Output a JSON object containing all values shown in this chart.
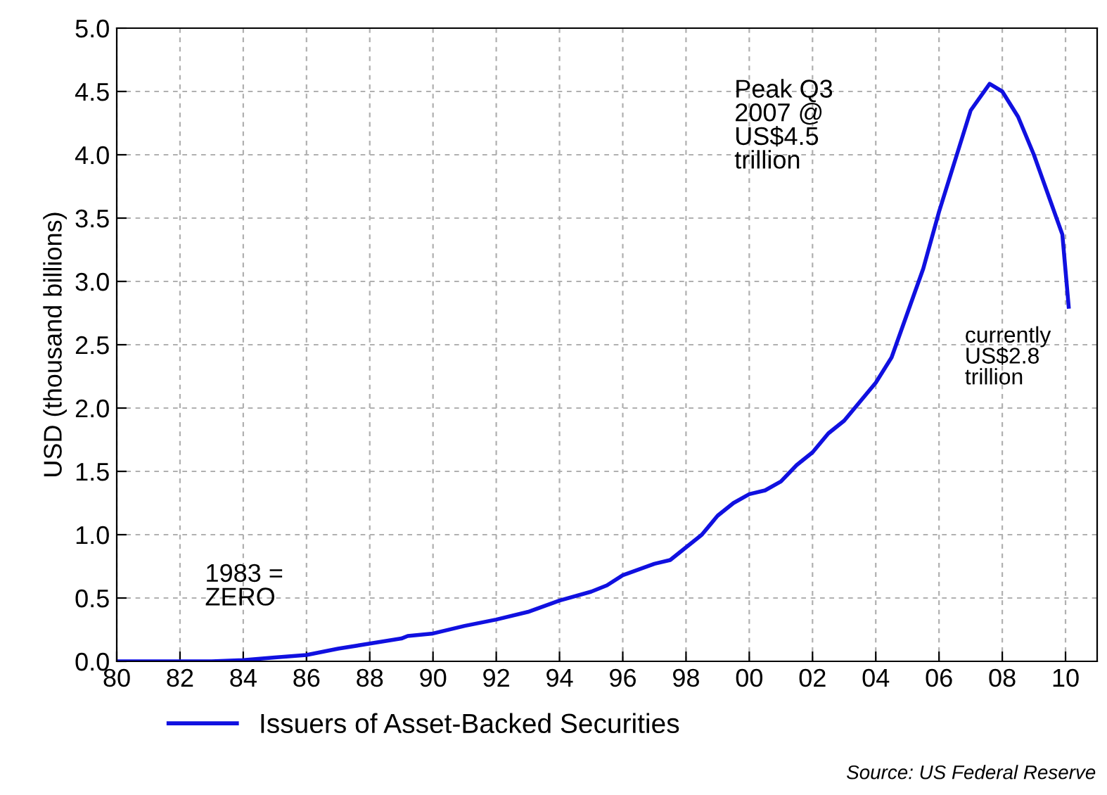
{
  "chart_data": {
    "type": "line",
    "ylabel": "USD (thousand billions)",
    "x": [
      1980,
      1983,
      1984,
      1985,
      1986,
      1987,
      1988,
      1989,
      1989.2,
      1990,
      1991,
      1992,
      1993,
      1994,
      1995,
      1995.5,
      1996,
      1997,
      1997.5,
      1998,
      1998.5,
      1999,
      1999.5,
      2000,
      2000.5,
      2001,
      2001.5,
      2002,
      2002.5,
      2003,
      2003.5,
      2004,
      2004.5,
      2005,
      2005.5,
      2006,
      2006.5,
      2007,
      2007.6,
      2008,
      2008.5,
      2009,
      2009.5,
      2009.9,
      2010.1
    ],
    "series": [
      {
        "name": "Issuers of Asset-Backed Securities",
        "color": "#1010e0",
        "values": [
          0,
          0,
          0.01,
          0.03,
          0.05,
          0.1,
          0.14,
          0.18,
          0.2,
          0.22,
          0.28,
          0.33,
          0.39,
          0.48,
          0.55,
          0.6,
          0.68,
          0.77,
          0.8,
          0.9,
          1.0,
          1.15,
          1.25,
          1.32,
          1.35,
          1.42,
          1.55,
          1.65,
          1.8,
          1.9,
          2.05,
          2.2,
          2.4,
          2.75,
          3.1,
          3.55,
          3.95,
          4.35,
          4.56,
          4.5,
          4.3,
          4.0,
          3.65,
          3.37,
          2.8
        ]
      }
    ],
    "xlim": [
      1980,
      2011
    ],
    "xticks": [
      {
        "value": 1980,
        "label": "80"
      },
      {
        "value": 1982,
        "label": "82"
      },
      {
        "value": 1984,
        "label": "84"
      },
      {
        "value": 1986,
        "label": "86"
      },
      {
        "value": 1988,
        "label": "88"
      },
      {
        "value": 1990,
        "label": "90"
      },
      {
        "value": 1992,
        "label": "92"
      },
      {
        "value": 1994,
        "label": "94"
      },
      {
        "value": 1996,
        "label": "96"
      },
      {
        "value": 1998,
        "label": "98"
      },
      {
        "value": 2000,
        "label": "00"
      },
      {
        "value": 2002,
        "label": "02"
      },
      {
        "value": 2004,
        "label": "04"
      },
      {
        "value": 2006,
        "label": "06"
      },
      {
        "value": 2008,
        "label": "08"
      },
      {
        "value": 2010,
        "label": "10"
      }
    ],
    "ylim": [
      0,
      5
    ],
    "yticks": [
      {
        "value": 0,
        "label": "0.0"
      },
      {
        "value": 0.5,
        "label": "0.5"
      },
      {
        "value": 1,
        "label": "1.0"
      },
      {
        "value": 1.5,
        "label": "1.5"
      },
      {
        "value": 2,
        "label": "2.0"
      },
      {
        "value": 2.5,
        "label": "2.5"
      },
      {
        "value": 3,
        "label": "3.0"
      },
      {
        "value": 3.5,
        "label": "3.5"
      },
      {
        "value": 4,
        "label": "4.0"
      },
      {
        "value": 4.5,
        "label": "4.5"
      },
      {
        "value": 5,
        "label": "5.0"
      }
    ],
    "grid": true,
    "legend": "bottom left",
    "line_style": "solid",
    "annotations": [
      "1983 =\nZERO",
      "Peak Q3\n2007 @\nUS$4.5\ntrillion",
      "currently\nUS$2.8\ntrillion",
      "Source: US Federal Reserve"
    ]
  }
}
